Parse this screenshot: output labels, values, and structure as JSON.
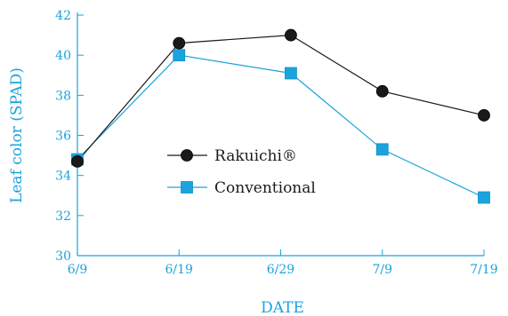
{
  "chart_data": {
    "type": "line",
    "title": "",
    "xlabel": "DATE",
    "ylabel": "Leaf color (SPAD)",
    "x_ticks": [
      "6/9",
      "6/19",
      "6/29",
      "7/9",
      "7/19"
    ],
    "x_values": [
      0,
      10,
      20,
      30,
      40
    ],
    "xlim": [
      0,
      40
    ],
    "ylim": [
      30,
      42
    ],
    "y_ticks": [
      30,
      32,
      34,
      36,
      38,
      40,
      42
    ],
    "grid": false,
    "legend_position": "center-left",
    "series": [
      {
        "name": "Rakuichi®",
        "marker": "circle",
        "color": "#1a1a1a",
        "line_color": "#1a1a1a",
        "x": [
          0,
          10,
          21,
          30,
          40
        ],
        "values": [
          34.7,
          40.6,
          41.0,
          38.2,
          37.0
        ]
      },
      {
        "name": "Conventional",
        "marker": "square",
        "color": "#1aa3dd",
        "line_color": "#1aa3dd",
        "x": [
          0,
          10,
          21,
          30,
          40
        ],
        "values": [
          34.8,
          40.0,
          39.1,
          35.3,
          32.9
        ]
      }
    ]
  }
}
